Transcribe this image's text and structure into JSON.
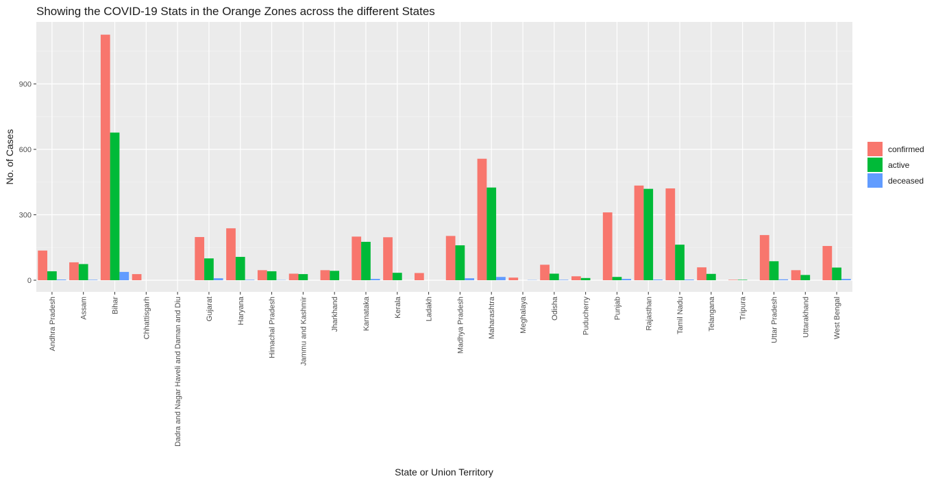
{
  "chart_data": {
    "type": "bar",
    "title": "Showing the COVID-19 Stats in the Orange Zones across the different States",
    "xlabel": "State or Union Territory",
    "ylabel": "No. of Cases",
    "ylim": [
      -55,
      1185
    ],
    "yticks": [
      0,
      300,
      600,
      900
    ],
    "grid": true,
    "legend_position": "right",
    "categories": [
      "Andhra Pradesh",
      "Assam",
      "Bihar",
      "Chhattisgarh",
      "Dadra and Nagar Haveli and Daman and Diu",
      "Gujarat",
      "Haryana",
      "Himachal Pradesh",
      "Jammu and Kashmir",
      "Jharkhand",
      "Karnataka",
      "Kerala",
      "Ladakh",
      "Madhya Pradesh",
      "Maharashtra",
      "Meghalaya",
      "Odisha",
      "Puducherry",
      "Punjab",
      "Rajasthan",
      "Tamil Nadu",
      "Telangana",
      "Tripura",
      "Uttar Pradesh",
      "Uttarakhand",
      "West Bengal"
    ],
    "series": [
      {
        "name": "confirmed",
        "color": "#F8766D",
        "values": [
          136,
          82,
          1126,
          28,
          0,
          198,
          238,
          46,
          30,
          46,
          200,
          197,
          33,
          203,
          557,
          12,
          71,
          18,
          311,
          434,
          421,
          59,
          2,
          207,
          46,
          157
        ]
      },
      {
        "name": "active",
        "color": "#00BA38",
        "values": [
          41,
          74,
          677,
          0,
          0,
          100,
          107,
          41,
          28,
          43,
          176,
          34,
          0,
          160,
          425,
          0,
          30,
          10,
          15,
          419,
          163,
          29,
          2,
          87,
          24,
          58
        ]
      },
      {
        "name": "deceased",
        "color": "#619CFF",
        "values": [
          3,
          2,
          38,
          0,
          0,
          9,
          2,
          1,
          0,
          0,
          6,
          0,
          0,
          9,
          15,
          1,
          2,
          0,
          6,
          3,
          3,
          0,
          0,
          4,
          0,
          6
        ]
      }
    ]
  }
}
